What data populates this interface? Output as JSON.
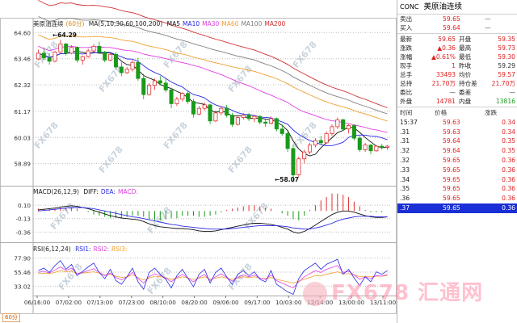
{
  "main_legend": {
    "name": "美原油连续",
    "timeframe": "(60分)",
    "ma_label": "MA(5,10,30,60,100,200)",
    "items": [
      {
        "label": "MA5",
        "color": "#111111"
      },
      {
        "label": "MA10",
        "color": "#2a2ae8"
      },
      {
        "label": "MA30",
        "color": "#e040e0"
      },
      {
        "label": "MA60",
        "color": "#f0a030"
      },
      {
        "label": "MA100",
        "color": "#808080"
      },
      {
        "label": "MA200",
        "color": "#d03030"
      }
    ]
  },
  "macd_legend": {
    "label": "MACD(26,12,9)",
    "items": [
      {
        "label": "DIFF:",
        "color": "#111111"
      },
      {
        "label": "DEA:",
        "color": "#2a2ae8"
      },
      {
        "label": "MACD:",
        "color": "#e040e0"
      }
    ]
  },
  "rsi_legend": {
    "label": "RSI(6,12,24)",
    "items": [
      {
        "label": "RSI1:",
        "color": "#2a2ae8"
      },
      {
        "label": "RSI2:",
        "color": "#e040e0"
      },
      {
        "label": "RSI3:",
        "color": "#f0a030"
      }
    ]
  },
  "timeframe_badge": "60分",
  "high_tag": "64.29",
  "low_tag": "58.07",
  "watermark_text": "FX678",
  "watermark_logo": "FX678 汇通网",
  "chart_data": [
    {
      "type": "candlestick",
      "title": "美原油连续 (60分)",
      "y_ticks": [
        64.6,
        63.46,
        62.32,
        61.17,
        60.03,
        58.89
      ],
      "y_tick_labels": [
        "64.60",
        "63.46",
        "62.32",
        "61.17",
        "60.03",
        "58.89"
      ],
      "ylim": [
        58.0,
        64.75
      ],
      "x_tick_labels": [
        "06/16:00",
        "07/02:00",
        "07/13:00",
        "07/23:00",
        "08/10:00",
        "08/20:00",
        "09/06:00",
        "09/17:00",
        "10/03:00",
        "12/14:00",
        "13/00:00",
        "13/11:00"
      ],
      "high_marker": 64.29,
      "low_marker": 58.07,
      "ohlc": [
        [
          63.45,
          63.85,
          63.4,
          63.7
        ],
        [
          63.7,
          63.95,
          63.4,
          63.5
        ],
        [
          63.5,
          63.7,
          63.2,
          63.35
        ],
        [
          63.35,
          63.8,
          63.3,
          63.75
        ],
        [
          63.75,
          64.29,
          63.7,
          64.1
        ],
        [
          64.1,
          64.15,
          63.6,
          63.7
        ],
        [
          63.7,
          64.05,
          63.65,
          63.95
        ],
        [
          63.95,
          64.0,
          63.3,
          63.4
        ],
        [
          63.4,
          63.6,
          63.2,
          63.55
        ],
        [
          63.55,
          63.9,
          63.5,
          63.8
        ],
        [
          63.8,
          64.1,
          63.75,
          64.0
        ],
        [
          64.0,
          64.2,
          63.7,
          63.75
        ],
        [
          63.75,
          63.8,
          63.3,
          63.4
        ],
        [
          63.4,
          63.7,
          63.35,
          63.65
        ],
        [
          63.65,
          63.75,
          63.0,
          63.1
        ],
        [
          63.1,
          63.3,
          62.7,
          62.85
        ],
        [
          62.85,
          63.1,
          62.8,
          63.0
        ],
        [
          63.0,
          63.4,
          62.9,
          63.3
        ],
        [
          63.3,
          63.5,
          62.5,
          62.6
        ],
        [
          62.6,
          62.8,
          61.7,
          61.9
        ],
        [
          61.9,
          62.4,
          61.85,
          62.3
        ],
        [
          62.3,
          62.6,
          62.1,
          62.5
        ],
        [
          62.5,
          62.7,
          62.3,
          62.4
        ],
        [
          62.4,
          62.6,
          62.0,
          62.1
        ],
        [
          62.1,
          62.2,
          61.3,
          61.5
        ],
        [
          61.5,
          61.8,
          61.4,
          61.7
        ],
        [
          61.7,
          62.0,
          61.6,
          61.95
        ],
        [
          61.95,
          62.05,
          61.5,
          61.6
        ],
        [
          61.6,
          61.7,
          60.9,
          61.05
        ],
        [
          61.05,
          61.4,
          61.0,
          61.3
        ],
        [
          61.3,
          61.55,
          61.2,
          61.45
        ],
        [
          61.45,
          61.5,
          60.6,
          60.75
        ],
        [
          60.75,
          61.2,
          60.7,
          61.1
        ],
        [
          61.1,
          61.4,
          61.0,
          61.3
        ],
        [
          61.3,
          61.45,
          60.9,
          61.0
        ],
        [
          61.0,
          61.1,
          60.5,
          60.6
        ],
        [
          60.6,
          61.0,
          60.55,
          60.9
        ],
        [
          60.9,
          61.1,
          60.8,
          61.0
        ],
        [
          61.0,
          61.1,
          60.75,
          60.85
        ],
        [
          60.85,
          61.0,
          60.7,
          60.95
        ],
        [
          60.95,
          61.0,
          60.6,
          60.7
        ],
        [
          60.7,
          60.8,
          60.5,
          60.65
        ],
        [
          60.65,
          60.95,
          60.6,
          60.85
        ],
        [
          60.85,
          60.9,
          60.3,
          60.4
        ],
        [
          60.4,
          60.6,
          60.1,
          60.2
        ],
        [
          60.2,
          60.3,
          59.4,
          59.55
        ],
        [
          59.55,
          59.7,
          58.07,
          58.4
        ],
        [
          58.4,
          59.2,
          58.3,
          59.1
        ],
        [
          59.1,
          59.5,
          58.9,
          59.4
        ],
        [
          59.4,
          59.8,
          59.3,
          59.7
        ],
        [
          59.7,
          60.0,
          59.6,
          59.9
        ],
        [
          59.9,
          60.1,
          59.7,
          59.8
        ],
        [
          59.8,
          60.3,
          59.75,
          60.2
        ],
        [
          60.2,
          60.6,
          60.1,
          60.5
        ],
        [
          60.5,
          60.9,
          60.4,
          60.8
        ],
        [
          60.8,
          60.85,
          60.3,
          60.4
        ],
        [
          60.4,
          60.6,
          60.2,
          60.55
        ],
        [
          60.55,
          60.6,
          59.9,
          60.0
        ],
        [
          60.0,
          60.1,
          59.4,
          59.5
        ],
        [
          59.5,
          59.8,
          59.4,
          59.7
        ],
        [
          59.7,
          59.75,
          59.3,
          59.45
        ],
        [
          59.45,
          59.7,
          59.4,
          59.65
        ],
        [
          59.65,
          59.75,
          59.5,
          59.6
        ],
        [
          59.6,
          59.7,
          59.5,
          59.65
        ]
      ]
    },
    {
      "type": "line",
      "title": "MACD(26,12,9)",
      "y_tick_labels": [
        "0.10",
        "-0.13",
        "-0.36"
      ],
      "y_ticks": [
        0.1,
        -0.13,
        -0.36
      ],
      "ylim": [
        -0.48,
        0.24
      ],
      "series": [
        {
          "name": "DIFF",
          "values": [
            0.02,
            0.03,
            0.04,
            0.05,
            0.07,
            0.08,
            0.09,
            0.08,
            0.06,
            0.04,
            0.01,
            -0.02,
            -0.05,
            -0.08,
            -0.1,
            -0.12,
            -0.13,
            -0.14,
            -0.15,
            -0.18,
            -0.22,
            -0.25,
            -0.27,
            -0.28,
            -0.29,
            -0.3,
            -0.3,
            -0.31,
            -0.32,
            -0.34,
            -0.35,
            -0.35,
            -0.34,
            -0.32,
            -0.3,
            -0.28,
            -0.26,
            -0.24,
            -0.22,
            -0.21,
            -0.21,
            -0.22,
            -0.23,
            -0.25,
            -0.28,
            -0.31,
            -0.36,
            -0.38,
            -0.35,
            -0.3,
            -0.24,
            -0.18,
            -0.12,
            -0.06,
            -0.02,
            0.0,
            0.0,
            -0.02,
            -0.05,
            -0.08,
            -0.1,
            -0.11,
            -0.11,
            -0.1
          ]
        },
        {
          "name": "DEA",
          "values": [
            0.0,
            0.01,
            0.02,
            0.03,
            0.04,
            0.05,
            0.06,
            0.06,
            0.06,
            0.05,
            0.04,
            0.02,
            0.0,
            -0.02,
            -0.04,
            -0.06,
            -0.08,
            -0.1,
            -0.11,
            -0.13,
            -0.15,
            -0.17,
            -0.19,
            -0.21,
            -0.23,
            -0.24,
            -0.26,
            -0.27,
            -0.28,
            -0.29,
            -0.3,
            -0.31,
            -0.31,
            -0.31,
            -0.31,
            -0.3,
            -0.29,
            -0.28,
            -0.27,
            -0.26,
            -0.25,
            -0.25,
            -0.25,
            -0.25,
            -0.26,
            -0.27,
            -0.29,
            -0.3,
            -0.31,
            -0.31,
            -0.29,
            -0.27,
            -0.24,
            -0.21,
            -0.17,
            -0.14,
            -0.12,
            -0.1,
            -0.09,
            -0.09,
            -0.09,
            -0.1,
            -0.1,
            -0.1
          ]
        },
        {
          "name": "MACD",
          "values": [
            0.04,
            0.04,
            0.04,
            0.04,
            0.06,
            0.06,
            0.06,
            0.04,
            0.0,
            -0.02,
            -0.06,
            -0.08,
            -0.1,
            -0.12,
            -0.12,
            -0.12,
            -0.1,
            -0.08,
            -0.08,
            -0.1,
            -0.14,
            -0.16,
            -0.16,
            -0.14,
            -0.12,
            -0.12,
            -0.08,
            -0.08,
            -0.08,
            -0.1,
            -0.1,
            -0.08,
            -0.06,
            -0.02,
            0.02,
            0.04,
            0.06,
            0.08,
            0.1,
            0.1,
            0.08,
            0.06,
            0.04,
            0.0,
            -0.04,
            -0.08,
            -0.14,
            -0.16,
            -0.08,
            0.02,
            0.1,
            0.18,
            0.24,
            0.3,
            0.3,
            0.28,
            0.24,
            0.16,
            0.08,
            0.02,
            -0.02,
            -0.02,
            -0.02,
            0.0
          ]
        }
      ]
    },
    {
      "type": "line",
      "title": "RSI(6,12,24)",
      "y_tick_labels": [
        "77.90",
        "55.46",
        "33.02"
      ],
      "y_ticks": [
        77.9,
        55.46,
        33.02
      ],
      "ylim": [
        18,
        84
      ],
      "series": [
        {
          "name": "RSI1",
          "values": [
            58,
            62,
            55,
            66,
            74,
            60,
            68,
            50,
            57,
            64,
            70,
            55,
            45,
            60,
            42,
            36,
            48,
            62,
            40,
            28,
            55,
            62,
            52,
            44,
            30,
            50,
            60,
            46,
            32,
            52,
            60,
            38,
            55,
            62,
            48,
            36,
            52,
            58,
            50,
            56,
            44,
            40,
            58,
            36,
            30,
            24,
            20,
            45,
            58,
            64,
            70,
            60,
            68,
            72,
            76,
            52,
            60,
            46,
            34,
            48,
            40,
            56,
            52,
            58
          ]
        },
        {
          "name": "RSI2",
          "values": [
            55,
            57,
            54,
            59,
            64,
            58,
            62,
            53,
            55,
            58,
            61,
            55,
            50,
            54,
            47,
            43,
            48,
            55,
            45,
            38,
            48,
            53,
            50,
            46,
            40,
            47,
            52,
            46,
            40,
            47,
            52,
            42,
            48,
            53,
            47,
            41,
            47,
            51,
            48,
            51,
            46,
            44,
            51,
            42,
            38,
            34,
            30,
            40,
            48,
            53,
            58,
            55,
            60,
            63,
            66,
            55,
            57,
            51,
            44,
            48,
            45,
            50,
            49,
            52
          ]
        },
        {
          "name": "RSI3",
          "values": [
            53,
            54,
            53,
            55,
            58,
            56,
            57,
            53,
            54,
            55,
            56,
            54,
            51,
            52,
            49,
            47,
            48,
            51,
            47,
            43,
            46,
            49,
            48,
            47,
            44,
            46,
            48,
            46,
            44,
            46,
            48,
            44,
            46,
            48,
            46,
            44,
            46,
            48,
            47,
            48,
            46,
            45,
            47,
            44,
            42,
            40,
            38,
            41,
            44,
            47,
            50,
            50,
            52,
            54,
            56,
            53,
            53,
            51,
            48,
            49,
            48,
            49,
            49,
            50
          ]
        }
      ]
    }
  ],
  "panel": {
    "code": "CONC",
    "name": "美原油连续",
    "quote_rows": [
      {
        "label": "卖出",
        "value": "59.65",
        "value_color": "#e02020",
        "extra": "—"
      },
      {
        "label": "买入",
        "value": "59.64",
        "value_color": "#e02020",
        "extra": "—"
      }
    ],
    "stats_rows": [
      {
        "l1": "最新",
        "v1": "59.65",
        "c1": "#e02020",
        "l2": "开盘",
        "v2": "59.35",
        "c2": "#e02020"
      },
      {
        "l1": "涨跌",
        "v1": "▲0.36",
        "c1": "#e02020",
        "l2": "最高",
        "v2": "59.73",
        "c2": "#e02020"
      },
      {
        "l1": "涨幅",
        "v1": "▲0.61%",
        "c1": "#e02020",
        "l2": "最低",
        "v2": "59.30",
        "c2": "#e02020"
      },
      {
        "l1": "现手",
        "v1": "1",
        "c1": "#e02020",
        "l2": "昨收",
        "v2": "59.29",
        "c2": "#333333"
      },
      {
        "l1": "总手",
        "v1": "33493",
        "c1": "#e02020",
        "l2": "均价",
        "v2": "59.57",
        "c2": "#e02020"
      },
      {
        "l1": "总持",
        "v1": "21.70万",
        "c1": "#e02020",
        "l2": "持仓差",
        "v2": "21.70万",
        "c2": "#e02020"
      },
      {
        "l1": "委比",
        "v1": "—",
        "c1": "#333333",
        "l2": "委差",
        "v2": "—",
        "c2": "#333333"
      },
      {
        "l1": "外盘",
        "v1": "14781",
        "c1": "#e02020",
        "l2": "内盘",
        "v2": "13816",
        "c2": "#1a9a1a"
      }
    ],
    "ticks_header": {
      "time": "时间",
      "price": "价格",
      "change": "涨跌"
    },
    "ticks": [
      {
        "time": "15:37",
        "price": "59.63",
        "change": "0.34"
      },
      {
        "time": ".31",
        "price": "59.63",
        "change": "0.34"
      },
      {
        "time": ".31",
        "price": "59.64",
        "change": "0.35"
      },
      {
        "time": ".32",
        "price": "59.64",
        "change": "0.35"
      },
      {
        "time": ".32",
        "price": "59.65",
        "change": "0.36"
      },
      {
        "time": ".33",
        "price": "59.65",
        "change": "0.36"
      },
      {
        "time": ".34",
        "price": "59.65",
        "change": "0.36"
      },
      {
        "time": ".35",
        "price": "59.65",
        "change": "0.36"
      },
      {
        "time": ".36",
        "price": "59.65",
        "change": "0.36"
      },
      {
        "time": ".37",
        "price": "59.65",
        "change": "0.36"
      }
    ],
    "selected_tick": 9
  }
}
